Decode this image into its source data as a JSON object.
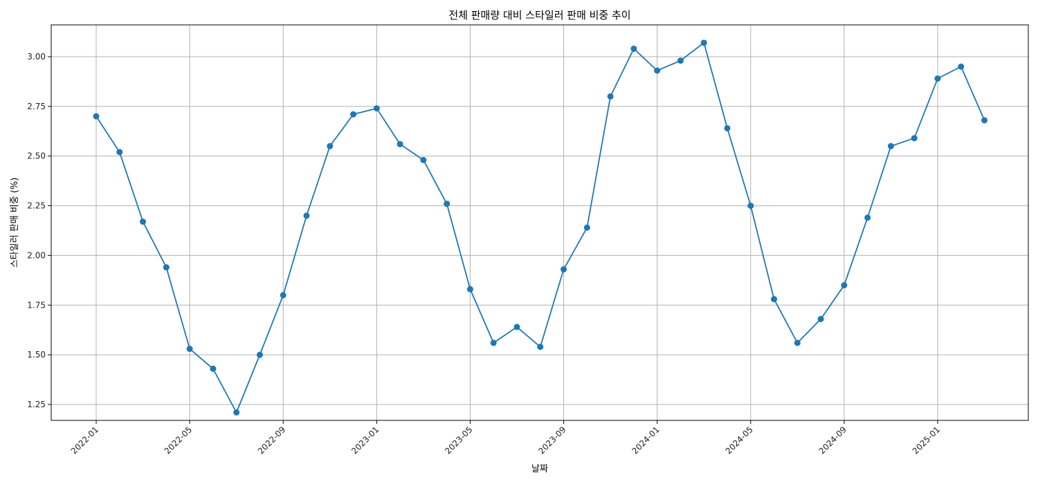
{
  "chart_data": {
    "type": "line",
    "title": "전체 판매량 대비 스타일러 판매 비중 추이",
    "xlabel": "날짜",
    "ylabel": "스타일러 판매 비중 (%)",
    "x_ticks": [
      "2022-01",
      "2022-05",
      "2022-09",
      "2023-01",
      "2023-05",
      "2023-09",
      "2024-01",
      "2024-05",
      "2024-09",
      "2025-01"
    ],
    "y_ticks": [
      "1.25",
      "1.50",
      "1.75",
      "2.00",
      "2.25",
      "2.50",
      "2.75",
      "3.00"
    ],
    "ylim": [
      1.17,
      3.16
    ],
    "grid": true,
    "color": "#1f77b4",
    "series": [
      {
        "x": [
          "2022-01",
          "2022-02",
          "2022-03",
          "2022-04",
          "2022-05",
          "2022-06",
          "2022-07",
          "2022-08",
          "2022-09",
          "2022-10",
          "2022-11",
          "2022-12",
          "2023-01",
          "2023-02",
          "2023-03",
          "2023-04",
          "2023-05",
          "2023-06",
          "2023-07",
          "2023-08",
          "2023-09",
          "2023-10",
          "2023-11",
          "2023-12",
          "2024-01",
          "2024-02",
          "2024-03",
          "2024-04",
          "2024-05",
          "2024-06",
          "2024-07",
          "2024-08",
          "2024-09",
          "2024-10",
          "2024-11",
          "2024-12",
          "2025-01",
          "2025-02",
          "2025-03"
        ],
        "values": [
          2.7,
          2.52,
          2.17,
          1.94,
          1.53,
          1.43,
          1.21,
          1.5,
          1.8,
          2.2,
          2.55,
          2.71,
          2.74,
          2.56,
          2.48,
          2.26,
          1.83,
          1.56,
          1.64,
          1.54,
          1.93,
          2.14,
          2.8,
          3.04,
          2.93,
          2.98,
          3.07,
          2.64,
          2.25,
          1.78,
          1.56,
          1.68,
          1.85,
          2.19,
          2.55,
          2.59,
          2.89,
          2.95,
          2.68
        ]
      }
    ]
  }
}
